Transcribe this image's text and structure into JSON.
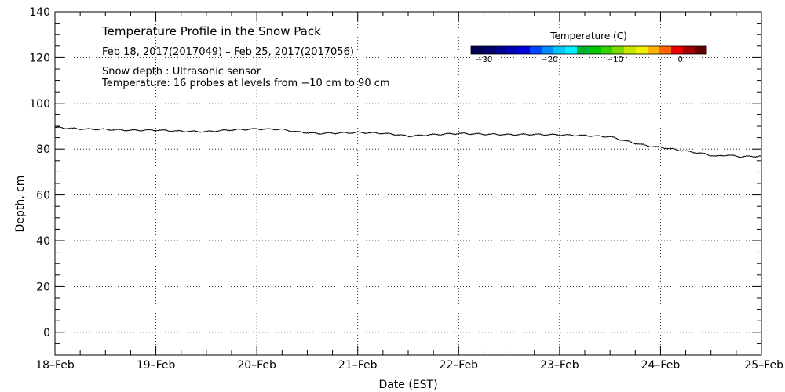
{
  "chart_data": {
    "type": "line",
    "title": "Temperature Profile in the Snow Pack",
    "subtitle": "Feb 18, 2017(2017049) – Feb 25, 2017(2017056)",
    "notes": [
      "Snow depth : Ultrasonic sensor",
      "Temperature: 16 probes at levels from −10 cm to 90 cm"
    ],
    "xlabel": "Date (EST)",
    "ylabel": "Depth, cm",
    "x_ticks": [
      "18–Feb",
      "19–Feb",
      "20–Feb",
      "21–Feb",
      "22–Feb",
      "23–Feb",
      "24–Feb",
      "25–Feb"
    ],
    "xlim_days": [
      0,
      7
    ],
    "ylim": [
      -10,
      140
    ],
    "y_ticks": [
      0,
      20,
      40,
      60,
      80,
      100,
      120,
      140
    ],
    "grid": true,
    "series": [
      {
        "x": [
          0,
          0.1,
          0.25,
          0.5,
          0.75,
          1.0,
          1.25,
          1.5,
          1.75,
          2.0,
          2.25,
          2.4,
          2.6,
          2.8,
          3.0,
          3.2,
          3.4,
          3.5,
          3.7,
          4.0,
          4.25,
          4.5,
          4.75,
          5.0,
          5.25,
          5.5,
          5.6,
          5.75,
          5.9,
          6.0,
          6.15,
          6.3,
          6.45,
          6.55,
          6.65,
          6.8,
          7.0
        ],
        "y": [
          89.5,
          89.2,
          88.8,
          88.6,
          88.2,
          88.3,
          87.8,
          87.6,
          88.4,
          88.8,
          88.6,
          87.5,
          86.8,
          87.0,
          87.2,
          87.0,
          86.3,
          85.6,
          86.2,
          86.8,
          86.5,
          86.3,
          86.4,
          86.2,
          85.9,
          85.4,
          84.2,
          82.5,
          81.2,
          80.8,
          79.8,
          78.8,
          77.8,
          76.8,
          77.4,
          76.7,
          76.9
        ],
        "color": "#000000"
      }
    ],
    "colorbar": {
      "title": "Temperature (C)",
      "tick_values": [
        -30,
        -20,
        -10,
        0
      ],
      "tick_labels": [
        "−30",
        "−20",
        "−10",
        "0"
      ],
      "range": [
        -32,
        4
      ],
      "colors": [
        "#000050",
        "#00006e",
        "#00008c",
        "#0000b4",
        "#0000dc",
        "#0046ff",
        "#008cff",
        "#00c8ff",
        "#00f0ff",
        "#00b432",
        "#00c800",
        "#32d200",
        "#78dc00",
        "#c8e600",
        "#f0f000",
        "#ffb400",
        "#ff6400",
        "#e60000",
        "#a00000",
        "#640000"
      ]
    }
  }
}
